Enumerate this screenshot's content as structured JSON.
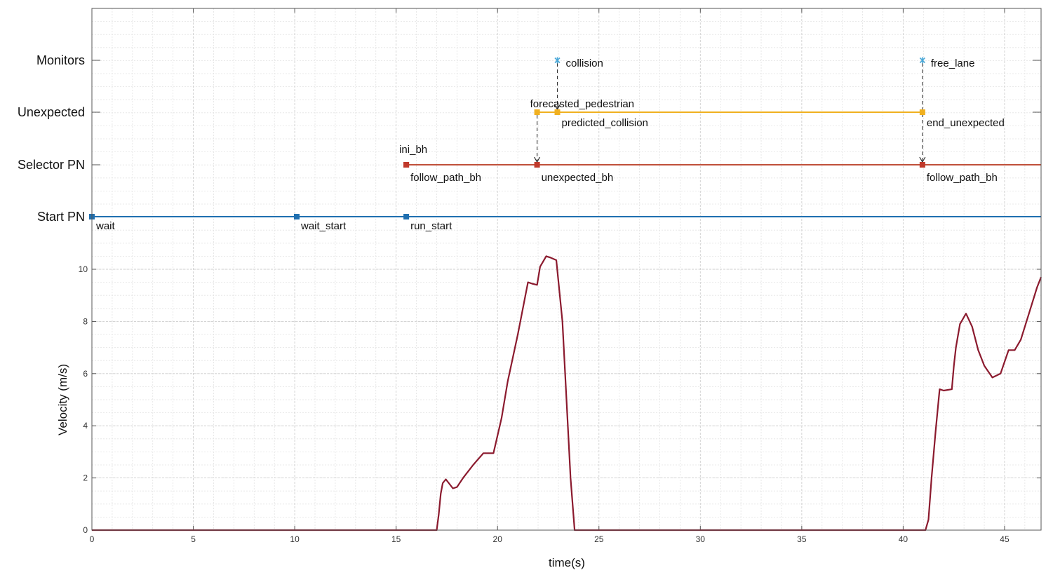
{
  "chart_data": {
    "type": "line",
    "xlabel": "time(s)",
    "ylabel": "Velocity (m/s)",
    "xlim": [
      0,
      46.8
    ],
    "ylim": [
      0,
      10
    ],
    "grid": true,
    "x_ticks": [
      0,
      5,
      10,
      15,
      20,
      25,
      30,
      35,
      40,
      45
    ],
    "y_ticks": [
      0,
      2,
      4,
      6,
      8,
      10
    ],
    "colors": {
      "start_pn": "#1f6fb0",
      "selector_pn": "#c0503a",
      "selector_marker": "#c0392b",
      "unexpected": "#f0b020",
      "monitors": "#4aa8d8",
      "velocity": "#8b1a2e",
      "arrow": "#333333"
    },
    "rows": [
      {
        "name": "Monitors",
        "series": "monitors"
      },
      {
        "name": "Unexpected",
        "series": "unexpected"
      },
      {
        "name": "Selector PN",
        "series": "selector_pn"
      },
      {
        "name": "Start PN",
        "series": "start_pn"
      }
    ],
    "timelines": {
      "start_pn": {
        "line_from": 0,
        "line_to": 46.8,
        "events": [
          {
            "t": 0,
            "label": "wait"
          },
          {
            "t": 10.1,
            "label": "wait_start"
          },
          {
            "t": 15.5,
            "label": "run_start"
          }
        ]
      },
      "selector_pn": {
        "line_from": 15.5,
        "line_to": 46.8,
        "events": [
          {
            "t": 15.5,
            "label": "ini_bh",
            "label_side": "above"
          },
          {
            "t": 15.5,
            "label": "follow_path_bh",
            "label_side": "below"
          },
          {
            "t": 21.95,
            "label": "unexpected_bh",
            "label_side": "below"
          },
          {
            "t": 40.95,
            "label": "follow_path_bh",
            "label_side": "below"
          }
        ]
      },
      "unexpected": {
        "line_from": 21.95,
        "line_to": 40.95,
        "events": [
          {
            "t": 21.95,
            "label": "forecasted_pedestrian",
            "label_side": "above"
          },
          {
            "t": 22.95,
            "label": "predicted_collision",
            "label_side": "below"
          },
          {
            "t": 40.95,
            "label": "end_unexpected",
            "label_side": "below"
          }
        ]
      },
      "monitors": {
        "events": [
          {
            "t": 22.95,
            "label": "collision"
          },
          {
            "t": 40.95,
            "label": "free_lane"
          }
        ]
      }
    },
    "arrows": [
      {
        "t": 22.95,
        "from": "monitors",
        "to": "unexpected"
      },
      {
        "t": 21.95,
        "from": "unexpected",
        "to": "selector_pn"
      },
      {
        "t": 40.95,
        "from": "monitors",
        "to": "selector_pn"
      }
    ],
    "series": [
      {
        "x": [
          0,
          17.0,
          17.1,
          17.2,
          17.3,
          17.45,
          17.6,
          17.8,
          18.0,
          18.3,
          18.8,
          19.3,
          19.8,
          20.2,
          20.5,
          21.0,
          21.5,
          21.7,
          21.95,
          22.1,
          22.4,
          22.6,
          22.9,
          23.2,
          23.4,
          23.6,
          23.8,
          24.0,
          24.1,
          41.1,
          41.25,
          41.4,
          41.6,
          41.8,
          42.0,
          42.4,
          42.5,
          42.6,
          42.8,
          43.1,
          43.4,
          43.7,
          44.0,
          44.4,
          44.8,
          45.2,
          45.5,
          45.8,
          46.2,
          46.6,
          46.8
        ],
        "values": [
          0,
          0,
          0.6,
          1.4,
          1.8,
          1.95,
          1.8,
          1.6,
          1.65,
          2.0,
          2.5,
          2.95,
          2.95,
          4.3,
          5.7,
          7.5,
          9.5,
          9.45,
          9.4,
          10.1,
          10.5,
          10.45,
          10.35,
          8.0,
          5.0,
          2.0,
          0,
          0,
          0,
          0,
          0.4,
          2.0,
          3.8,
          5.4,
          5.35,
          5.4,
          6.3,
          7.0,
          7.9,
          8.3,
          7.8,
          6.9,
          6.3,
          5.85,
          6.0,
          6.9,
          6.9,
          7.3,
          8.3,
          9.3,
          9.7
        ]
      }
    ]
  }
}
